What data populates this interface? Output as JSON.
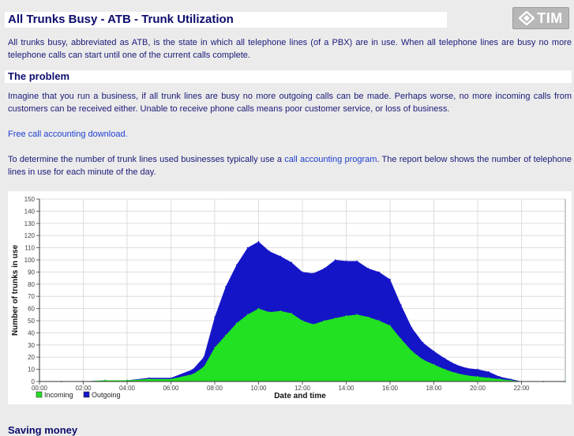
{
  "page": {
    "title": "All Trunks Busy - ATB - Trunk Utilization",
    "logo_text": "TIM",
    "intro": "All trunks busy, abbreviated as ATB, is the state in which all telephone lines (of a PBX) are in use. When all telephone lines are busy no more telephone calls can start until one of the current calls complete.",
    "problem_heading": "The problem",
    "problem_text": "Imagine that you run a business, if all trunk lines are busy no more outgoing calls can be made. Perhaps worse, no more incoming calls from customers can be received either. Unable to receive phone calls means poor customer service, or loss of business.",
    "download_link": "Free call accounting download.",
    "report_before": "To determine the number of trunk lines used businesses typically use a ",
    "report_link": "call accounting program",
    "report_after": ". The report below shows the number of telephone lines in use for each minute of the day.",
    "next_heading_partial": "Saving money"
  },
  "colors": {
    "incoming": "#22e022",
    "outgoing": "#1515c8",
    "heading": "#0d0d6e",
    "text": "#1a1a7a",
    "link": "#1e3fd1"
  },
  "chart_data": {
    "type": "area",
    "stacked": true,
    "xlabel": "Date and time",
    "ylabel": "Number of trunks in use",
    "ylim": [
      0,
      150
    ],
    "xlim_hours": [
      0,
      24
    ],
    "grid": true,
    "legend_position": "bottom-left",
    "x_ticks": [
      "00:00",
      "02:00",
      "04:00",
      "06:00",
      "08:00",
      "10:00",
      "12:00",
      "14:00",
      "16:00",
      "18:00",
      "20:00",
      "22:00"
    ],
    "y_ticks": [
      0,
      10,
      20,
      30,
      40,
      50,
      60,
      70,
      80,
      90,
      100,
      110,
      120,
      130,
      140,
      150
    ],
    "x": [
      0,
      1,
      2,
      3,
      4,
      5,
      6,
      7,
      7.5,
      8,
      8.5,
      9,
      9.5,
      10,
      10.5,
      11,
      11.5,
      12,
      12.5,
      13,
      13.5,
      14,
      14.5,
      15,
      15.5,
      16,
      16.5,
      17,
      17.5,
      18,
      18.5,
      19,
      19.5,
      20,
      20.5,
      21,
      21.5,
      22,
      23,
      24
    ],
    "series": [
      {
        "name": "Incoming",
        "values": [
          0,
          0,
          0,
          1,
          1,
          2,
          2,
          6,
          12,
          28,
          38,
          48,
          55,
          60,
          57,
          58,
          56,
          50,
          47,
          50,
          52,
          54,
          55,
          53,
          50,
          46,
          35,
          25,
          18,
          14,
          10,
          7,
          5,
          4,
          3,
          2,
          1,
          0,
          0,
          0
        ]
      },
      {
        "name": "Outgoing",
        "values": [
          0,
          0,
          0,
          0,
          0,
          1,
          1,
          4,
          8,
          25,
          40,
          48,
          55,
          55,
          50,
          45,
          42,
          40,
          42,
          43,
          48,
          45,
          44,
          40,
          40,
          38,
          28,
          19,
          14,
          11,
          9,
          7,
          6,
          6,
          5,
          2,
          1,
          0,
          0,
          0
        ]
      }
    ]
  }
}
